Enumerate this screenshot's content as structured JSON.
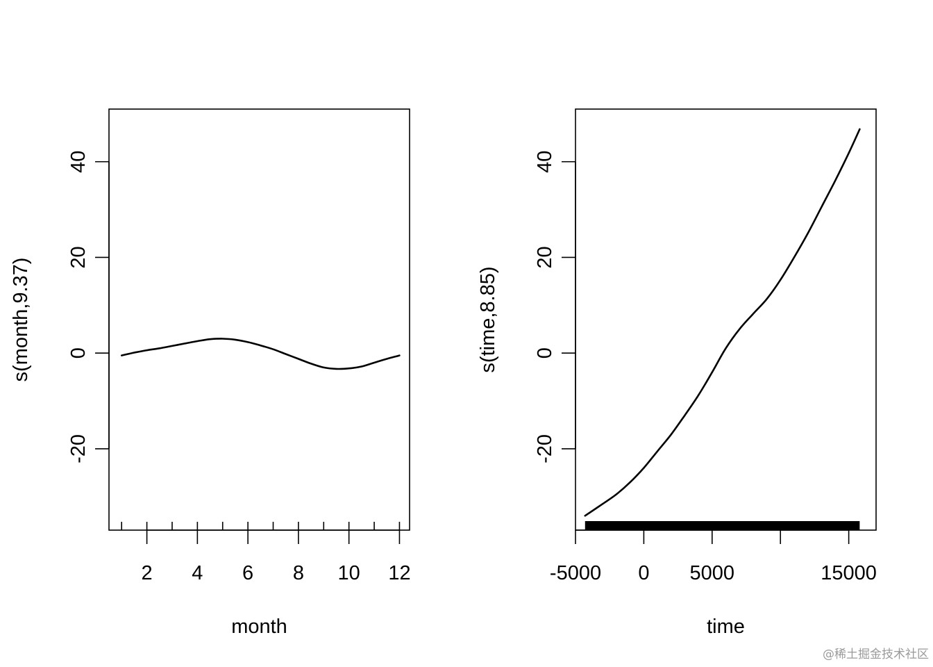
{
  "watermark": "@稀土掘金技术社区",
  "chart_data": [
    {
      "type": "line",
      "xlabel": "month",
      "ylabel": "s(month,9.37)",
      "xlim": [
        0.5,
        12.4
      ],
      "ylim": [
        -37,
        51
      ],
      "x_ticks": [
        2,
        4,
        6,
        8,
        10,
        12
      ],
      "x_tick_labels": [
        "2",
        "4",
        "6",
        "8",
        "10",
        "12"
      ],
      "y_ticks": [
        -20,
        0,
        20,
        40
      ],
      "y_tick_labels": [
        "-20",
        "0",
        "20",
        "40"
      ],
      "rug": [
        1,
        2,
        3,
        4,
        5,
        6,
        7,
        8,
        9,
        10,
        11,
        12
      ],
      "grid": false,
      "series": [
        {
          "x": [
            1,
            1.5,
            2,
            2.5,
            3,
            3.5,
            4,
            4.5,
            5,
            5.5,
            6,
            6.5,
            7,
            7.5,
            8,
            8.5,
            9,
            9.5,
            10,
            10.5,
            11,
            11.5,
            12
          ],
          "values": [
            -0.5,
            0.1,
            0.6,
            1.0,
            1.5,
            2.0,
            2.5,
            2.9,
            3.0,
            2.8,
            2.3,
            1.6,
            0.8,
            -0.2,
            -1.2,
            -2.2,
            -3.0,
            -3.3,
            -3.2,
            -2.8,
            -2.0,
            -1.2,
            -0.5
          ]
        }
      ]
    },
    {
      "type": "line",
      "xlabel": "time",
      "ylabel": "s(time,8.85)",
      "xlim": [
        -5000,
        17000
      ],
      "ylim": [
        -37,
        51
      ],
      "x_ticks": [
        -5000,
        0,
        5000,
        10000,
        15000
      ],
      "x_tick_labels": [
        "-5000",
        "0",
        "5000",
        "",
        "15000"
      ],
      "y_ticks": [
        -20,
        0,
        20,
        40
      ],
      "y_tick_labels": [
        "-20",
        "0",
        "20",
        "40"
      ],
      "rug_range": [
        -4300,
        15800
      ],
      "grid": false,
      "series": [
        {
          "x": [
            -4300,
            -3000,
            -2000,
            -1000,
            0,
            1000,
            2000,
            3000,
            4000,
            5000,
            6000,
            7000,
            8000,
            9000,
            10000,
            11000,
            12000,
            13000,
            14000,
            15000,
            15800
          ],
          "values": [
            -34,
            -31.5,
            -29.5,
            -27,
            -24,
            -20.5,
            -17,
            -13,
            -8.8,
            -4,
            1.0,
            5.0,
            8.2,
            11.3,
            15.3,
            20.0,
            25.0,
            30.5,
            36.0,
            41.8,
            46.8
          ]
        }
      ]
    }
  ]
}
